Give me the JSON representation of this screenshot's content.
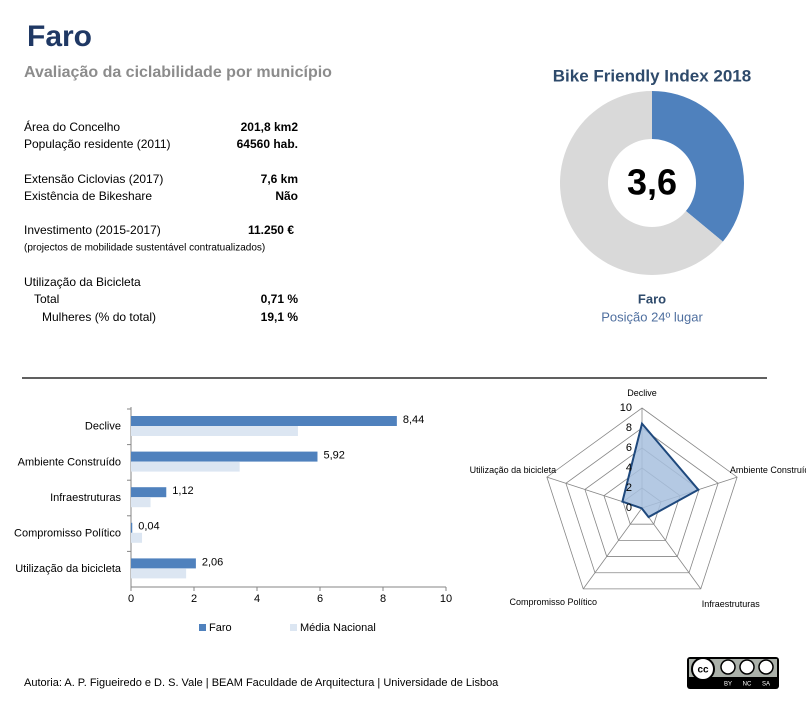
{
  "header": {
    "title": "Faro",
    "subtitle": "Avaliação da ciclabilidade por município"
  },
  "stats": {
    "area": {
      "label": "Área do Concelho",
      "value": "201,8 km2"
    },
    "population": {
      "label": "População residente (2011)",
      "value": "64560 hab."
    },
    "cycleways": {
      "label": "Extensão Ciclovias (2017)",
      "value": "7,6 km"
    },
    "bikeshare": {
      "label": "Existência de Bikeshare",
      "value": "Não"
    },
    "investment": {
      "label": "Investimento (2015-2017)",
      "value": "11.250 €",
      "note": "(projectos de mobilidade sustentável contratualizados)"
    },
    "usage": {
      "heading": "Utilização da Bicicleta",
      "total": {
        "label": "Total",
        "value": "0,71 %"
      },
      "women": {
        "label": "Mulheres (% do total)",
        "value": "19,1 %"
      }
    }
  },
  "chart_data": [
    {
      "type": "pie",
      "title": "Bike Friendly Index 2018",
      "values": [
        3.6,
        6.4
      ],
      "colors": [
        "#4f81bd",
        "#d9d9d9"
      ],
      "center_label": "3,6",
      "caption": "Faro",
      "subcaption": "Posição 24º lugar"
    },
    {
      "type": "bar",
      "orientation": "horizontal",
      "categories": [
        "Declive",
        "Ambiente Construído",
        "Infraestruturas",
        "Compromisso Político",
        "Utilização da bicicleta"
      ],
      "series": [
        {
          "name": "Faro",
          "color": "#4f81bd",
          "values": [
            8.44,
            5.92,
            1.12,
            0.04,
            2.06
          ],
          "value_labels": [
            "8,44",
            "5,92",
            "1,12",
            "0,04",
            "2,06"
          ]
        },
        {
          "name": "Média Nacional",
          "color": "#dce6f2",
          "values": [
            5.3,
            3.45,
            0.62,
            0.35,
            1.75
          ]
        }
      ],
      "xlim": [
        0,
        10
      ],
      "xticks": [
        0,
        2,
        4,
        6,
        8,
        10
      ],
      "legend": "bottom"
    },
    {
      "type": "radar",
      "categories": [
        "Declive",
        "Ambiente Construído",
        "Infraestruturas",
        "Compromisso Político",
        "Utilização da bicicleta"
      ],
      "series": [
        {
          "color": "#1f497d",
          "fill": "#a7bfde",
          "values": [
            8.44,
            5.92,
            1.12,
            0.04,
            2.06
          ]
        }
      ],
      "rlim": [
        0,
        10
      ],
      "rticks": [
        0,
        2,
        4,
        6,
        8,
        10
      ]
    }
  ],
  "footer": {
    "credit": "Autoria: A. P. Figueiredo e D. S. Vale | BEAM Faculdade de Arquitectura | Universidade de Lisboa",
    "license": [
      "cc",
      "BY",
      "NC",
      "SA"
    ]
  }
}
